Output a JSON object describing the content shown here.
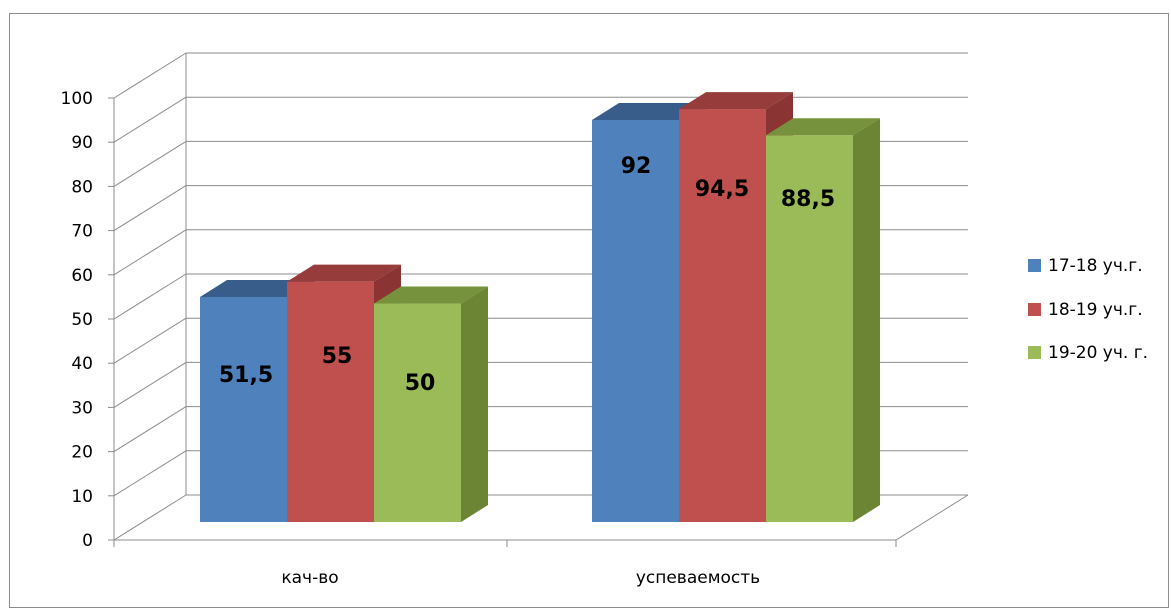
{
  "chart_data": {
    "type": "bar",
    "style": "3d-clustered-column",
    "categories": [
      "кач-во",
      "успеваемость"
    ],
    "series": [
      {
        "name": "17-18 уч.г.",
        "values": [
          51.5,
          92
        ],
        "value_labels": [
          "51,5",
          "92"
        ],
        "color": "#4f81bd",
        "color_top": "#385d8a",
        "color_side": "#2f5080"
      },
      {
        "name": "18-19 уч.г.",
        "values": [
          55,
          94.5
        ],
        "value_labels": [
          "55",
          "94,5"
        ],
        "color": "#c0504d",
        "color_top": "#963c3a",
        "color_side": "#8a3533"
      },
      {
        "name": "19-20 уч. г.",
        "values": [
          50,
          88.5
        ],
        "value_labels": [
          "50",
          "88,5"
        ],
        "color": "#9bbb59",
        "color_top": "#76923c",
        "color_side": "#6b8535"
      }
    ],
    "y_ticks": [
      "0",
      "10",
      "20",
      "30",
      "40",
      "50",
      "60",
      "70",
      "80",
      "90",
      "100"
    ],
    "ylim": [
      0,
      100
    ],
    "grid": true,
    "legend_position": "right"
  }
}
